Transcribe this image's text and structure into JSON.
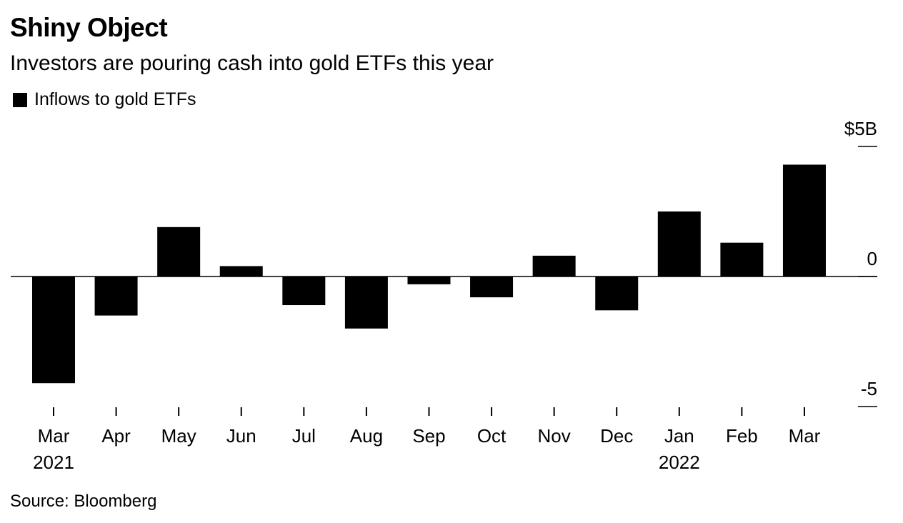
{
  "chart_data": {
    "type": "bar",
    "title": "Shiny Object",
    "subtitle": "Investors are pouring cash into gold ETFs this year",
    "legend": [
      {
        "name": "Inflows to gold ETFs",
        "color": "#000000"
      }
    ],
    "categories": [
      "Mar",
      "Apr",
      "May",
      "Jun",
      "Jul",
      "Aug",
      "Sep",
      "Oct",
      "Nov",
      "Dec",
      "Jan",
      "Feb",
      "Mar"
    ],
    "year_labels": {
      "0": "2021",
      "10": "2022"
    },
    "values": [
      -4.1,
      -1.5,
      1.9,
      0.4,
      -1.1,
      -2.0,
      -0.3,
      -0.8,
      0.8,
      -1.3,
      2.5,
      1.3,
      4.3
    ],
    "ylim": [
      -5,
      5
    ],
    "y_ticks": [
      {
        "value": 5,
        "label": "$5B"
      },
      {
        "value": 0,
        "label": "0"
      },
      {
        "value": -5,
        "label": "-5"
      }
    ],
    "xlabel": "",
    "ylabel": "",
    "source": "Source: Bloomberg"
  }
}
